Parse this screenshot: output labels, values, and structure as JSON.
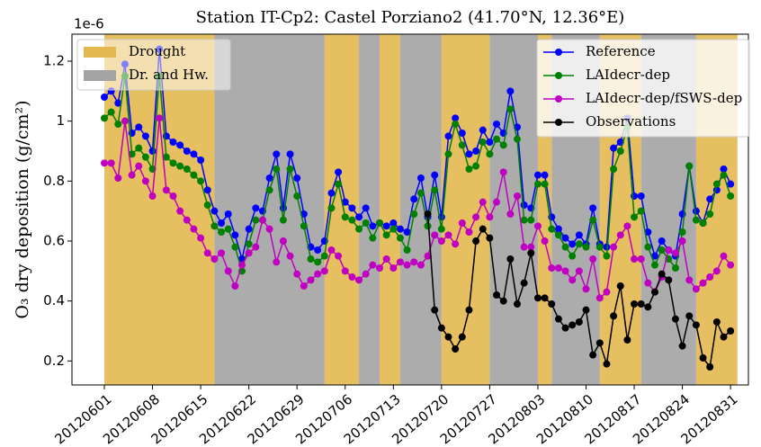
{
  "chart_data": {
    "type": "line",
    "title": "Station IT-Cp2: Castel Porziano2 (41.70°N, 12.36°E)",
    "y_label": "O₃ dry deposition (g/cm²)",
    "y_offset_text": "1e-6",
    "categories": [
      "20120601",
      "20120602",
      "20120603",
      "20120604",
      "20120605",
      "20120606",
      "20120607",
      "20120608",
      "20120609",
      "20120610",
      "20120611",
      "20120612",
      "20120613",
      "20120614",
      "20120615",
      "20120616",
      "20120617",
      "20120618",
      "20120619",
      "20120620",
      "20120621",
      "20120622",
      "20120623",
      "20120624",
      "20120625",
      "20120626",
      "20120627",
      "20120628",
      "20120629",
      "20120630",
      "20120701",
      "20120702",
      "20120703",
      "20120704",
      "20120705",
      "20120706",
      "20120707",
      "20120708",
      "20120709",
      "20120710",
      "20120711",
      "20120712",
      "20120713",
      "20120714",
      "20120715",
      "20120716",
      "20120717",
      "20120718",
      "20120719",
      "20120720",
      "20120721",
      "20120722",
      "20120723",
      "20120724",
      "20120725",
      "20120726",
      "20120727",
      "20120728",
      "20120729",
      "20120730",
      "20120731",
      "20120801",
      "20120802",
      "20120803",
      "20120804",
      "20120805",
      "20120806",
      "20120807",
      "20120808",
      "20120809",
      "20120810",
      "20120811",
      "20120812",
      "20120813",
      "20120814",
      "20120815",
      "20120816",
      "20120817",
      "20120818",
      "20120819",
      "20120820",
      "20120821",
      "20120822",
      "20120823",
      "20120824",
      "20120825",
      "20120826",
      "20120827",
      "20120828",
      "20120829",
      "20120830",
      "20120831"
    ],
    "xticks": [
      "20120601",
      "20120608",
      "20120615",
      "20120622",
      "20120629",
      "20120706",
      "20120713",
      "20120720",
      "20120727",
      "20120803",
      "20120810",
      "20120817",
      "20120824",
      "20120831"
    ],
    "ylim": [
      0.12,
      1.29
    ],
    "yticks": [
      0.2,
      0.4,
      0.6,
      0.8,
      1.0,
      1.2
    ],
    "span_series": [
      {
        "name": "Drought",
        "color": "#e3b84f",
        "ranges": [
          [
            "20120601",
            "20120616"
          ],
          [
            "20120703",
            "20120707"
          ],
          [
            "20120711",
            "20120713"
          ],
          [
            "20120720",
            "20120726"
          ],
          [
            "20120803",
            "20120804"
          ],
          [
            "20120812",
            "20120817"
          ],
          [
            "20120826",
            "20120831"
          ]
        ]
      },
      {
        "name": "Dr. and Hw.",
        "color": "#a3a3a3",
        "ranges": [
          [
            "20120617",
            "20120702"
          ],
          [
            "20120708",
            "20120710"
          ],
          [
            "20120714",
            "20120719"
          ],
          [
            "20120727",
            "20120802"
          ],
          [
            "20120805",
            "20120811"
          ],
          [
            "20120818",
            "20120825"
          ]
        ]
      }
    ],
    "series": [
      {
        "name": "Reference",
        "color": "#0000ff",
        "values": [
          1.08,
          1.1,
          1.06,
          1.19,
          0.96,
          0.98,
          0.95,
          0.9,
          1.24,
          0.95,
          0.93,
          0.92,
          0.9,
          0.89,
          0.87,
          0.77,
          0.7,
          0.66,
          0.69,
          0.62,
          0.54,
          0.64,
          0.71,
          0.7,
          0.81,
          0.89,
          0.71,
          0.89,
          0.81,
          0.69,
          0.58,
          0.57,
          0.6,
          0.76,
          0.83,
          0.73,
          0.71,
          0.68,
          0.71,
          0.65,
          0.66,
          0.65,
          0.66,
          0.64,
          0.63,
          0.74,
          0.81,
          0.68,
          0.82,
          0.68,
          0.95,
          1.01,
          0.96,
          0.89,
          0.9,
          0.97,
          0.93,
          0.99,
          0.96,
          1.1,
          0.98,
          0.72,
          0.71,
          0.82,
          0.82,
          0.68,
          0.64,
          0.61,
          0.59,
          0.62,
          0.59,
          0.71,
          0.59,
          0.58,
          0.91,
          0.93,
          1.01,
          0.75,
          0.75,
          0.63,
          0.55,
          0.6,
          0.57,
          0.55,
          0.69,
          0.85,
          0.7,
          0.66,
          0.74,
          0.77,
          0.84,
          0.79
        ]
      },
      {
        "name": "LAIdecr-dep",
        "color": "#008000",
        "values": [
          1.01,
          1.03,
          0.99,
          1.15,
          0.89,
          0.91,
          0.88,
          0.84,
          1.15,
          0.88,
          0.86,
          0.85,
          0.84,
          0.82,
          0.8,
          0.72,
          0.65,
          0.63,
          0.64,
          0.58,
          0.5,
          0.59,
          0.67,
          0.67,
          0.77,
          0.84,
          0.67,
          0.84,
          0.75,
          0.65,
          0.54,
          0.53,
          0.55,
          0.71,
          0.79,
          0.68,
          0.67,
          0.64,
          0.66,
          0.61,
          0.66,
          0.62,
          0.64,
          0.61,
          0.57,
          0.69,
          0.76,
          0.65,
          0.77,
          0.64,
          0.89,
          0.99,
          0.92,
          0.84,
          0.85,
          0.93,
          0.89,
          0.94,
          0.92,
          1.04,
          0.94,
          0.67,
          0.67,
          0.79,
          0.79,
          0.64,
          0.62,
          0.58,
          0.55,
          0.59,
          0.58,
          0.67,
          0.58,
          0.55,
          0.84,
          0.9,
          0.98,
          0.68,
          0.7,
          0.58,
          0.52,
          0.57,
          0.54,
          0.51,
          0.63,
          0.85,
          0.67,
          0.66,
          0.69,
          0.79,
          0.82,
          0.75
        ]
      },
      {
        "name": "LAIdecr-dep/fSWS-dep",
        "color": "#c000c0",
        "values": [
          0.86,
          0.86,
          0.81,
          1.0,
          0.82,
          0.85,
          0.8,
          0.75,
          1.01,
          0.77,
          0.75,
          0.7,
          0.67,
          0.64,
          0.61,
          0.56,
          0.54,
          0.56,
          0.5,
          0.45,
          0.52,
          0.56,
          0.58,
          0.67,
          0.64,
          0.53,
          0.6,
          0.55,
          0.49,
          0.45,
          0.47,
          0.49,
          0.5,
          0.57,
          0.55,
          0.5,
          0.48,
          0.47,
          0.49,
          0.52,
          0.51,
          0.54,
          0.51,
          0.53,
          0.52,
          0.53,
          0.52,
          0.55,
          0.62,
          0.6,
          0.62,
          0.59,
          0.66,
          0.63,
          0.68,
          0.73,
          0.68,
          0.73,
          0.83,
          0.69,
          0.75,
          0.58,
          0.58,
          0.65,
          0.6,
          0.51,
          0.51,
          0.5,
          0.47,
          0.5,
          0.44,
          0.54,
          0.41,
          0.43,
          0.58,
          0.62,
          0.65,
          0.54,
          0.54,
          0.46,
          0.43,
          0.48,
          0.57,
          0.56,
          0.6,
          0.47,
          0.44,
          0.46,
          0.48,
          0.5,
          0.55,
          0.52
        ]
      },
      {
        "name": "Observations",
        "color": "#000000",
        "values": [
          null,
          null,
          null,
          null,
          null,
          null,
          null,
          null,
          null,
          null,
          null,
          null,
          null,
          null,
          null,
          null,
          null,
          null,
          null,
          null,
          null,
          null,
          null,
          null,
          null,
          null,
          null,
          null,
          null,
          null,
          null,
          null,
          null,
          null,
          null,
          null,
          null,
          null,
          null,
          null,
          null,
          null,
          null,
          null,
          null,
          null,
          null,
          0.69,
          0.37,
          0.31,
          0.28,
          0.24,
          0.28,
          0.37,
          0.6,
          0.64,
          0.61,
          0.42,
          0.4,
          0.54,
          0.39,
          0.46,
          0.56,
          0.41,
          0.41,
          0.39,
          0.34,
          0.31,
          0.32,
          0.33,
          0.37,
          0.22,
          0.26,
          0.19,
          0.35,
          0.45,
          0.27,
          0.39,
          0.39,
          0.38,
          0.43,
          0.49,
          0.47,
          0.34,
          0.25,
          0.35,
          0.32,
          0.21,
          0.18,
          0.33,
          0.28,
          0.3
        ]
      }
    ]
  }
}
